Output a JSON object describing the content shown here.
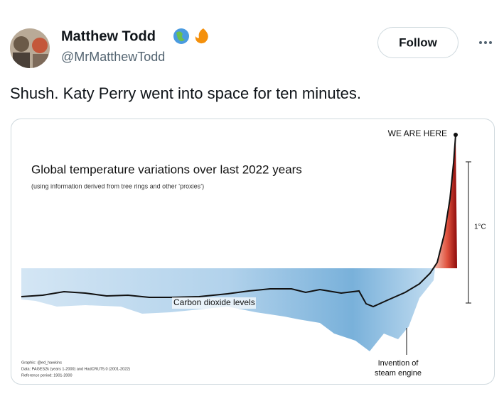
{
  "tweet": {
    "author": {
      "name": "Matthew Todd",
      "handle": "@MrMatthewTodd"
    },
    "follow_button": "Follow",
    "text": "Shush. Katy Perry went into space for ten minutes."
  },
  "image": {
    "title": "Global temperature variations over last 2022 years",
    "subtitle": "(using information derived from tree rings and other ‘proxies’)",
    "marker_label": "WE ARE HERE",
    "scale_label": "1°C",
    "line_label": "Carbon dioxide levels",
    "event_label": [
      "Invention of",
      "steam engine"
    ],
    "credits": [
      "Graphic: @ed_hawkins",
      "Data: PAGES2k (years 1-2000) and HadCRUT5.0 (2001-2022)",
      "Reference period: 1901-2000"
    ]
  }
}
